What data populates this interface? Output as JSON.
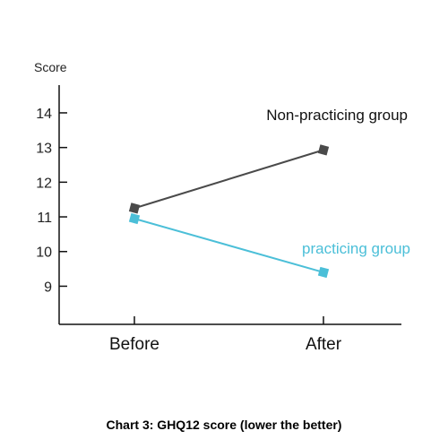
{
  "caption": "Chart 3: GHQ12 score (lower the better)",
  "chart_data": {
    "type": "line",
    "title": "Chart 3: GHQ12 score (lower the better)",
    "xlabel": "",
    "ylabel": "Score",
    "categories": [
      "Before",
      "After"
    ],
    "yticks": [
      9,
      10,
      11,
      12,
      13,
      14
    ],
    "ylim": [
      7.9,
      14.8
    ],
    "grid": false,
    "legend": "inline labels next to line ends",
    "series": [
      {
        "name": "Non-practicing group",
        "values": [
          11.25,
          12.93
        ],
        "color": "#4a4a4a"
      },
      {
        "name": "practicing group",
        "values": [
          10.95,
          9.4
        ],
        "color": "#4bbfd8"
      }
    ]
  }
}
